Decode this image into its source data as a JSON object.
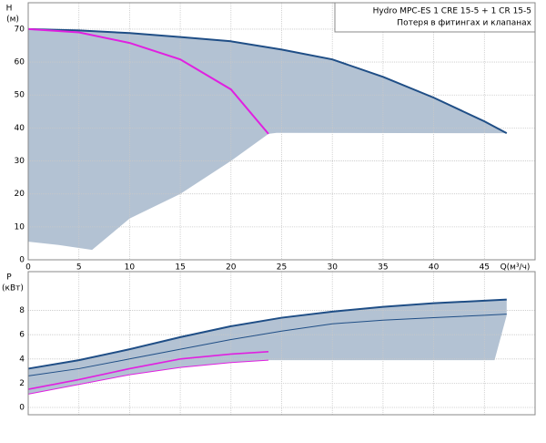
{
  "chart_data": [
    {
      "type": "line",
      "y_label": "H",
      "y_unit": "(м)",
      "x_label": "Q(м³/ч)",
      "xlim": [
        0,
        50
      ],
      "xticks": [
        0,
        5,
        10,
        15,
        20,
        25,
        30,
        35,
        40,
        45
      ],
      "xtick_labels": true,
      "ylim": [
        0,
        78
      ],
      "yticks": [
        0,
        10,
        20,
        30,
        40,
        50,
        60,
        70
      ],
      "grid": true,
      "legend": [
        "Hydro MPC-ES 1 CRE 15-5  +  1 CR 15-5",
        "Потеря в фитингах и клапанах"
      ],
      "region": {
        "color": "#b3c2d3",
        "x": [
          0,
          5,
          10,
          15,
          20,
          25,
          30,
          35,
          40,
          45,
          47.2,
          24.5,
          23.7,
          20,
          15,
          10,
          6.3,
          3,
          0
        ],
        "values": [
          70,
          69.6,
          68.8,
          67.6,
          66.3,
          63.8,
          60.8,
          55.5,
          49.2,
          42,
          38.4,
          38.5,
          38.2,
          30,
          20,
          12.5,
          3,
          4.5,
          5.5
        ]
      },
      "series": [
        {
          "color": "#1f4e86",
          "width": 2,
          "x": [
            0,
            5,
            10,
            15,
            20,
            25,
            30,
            35,
            40,
            45,
            47.2
          ],
          "values": [
            70,
            69.6,
            68.8,
            67.6,
            66.3,
            63.8,
            60.8,
            55.5,
            49.2,
            42,
            38.4
          ]
        },
        {
          "color": "#e020e0",
          "width": 2,
          "x": [
            0,
            5,
            10,
            15,
            20,
            23.7
          ],
          "values": [
            70,
            69,
            65.8,
            60.8,
            51.7,
            38.2
          ]
        }
      ]
    },
    {
      "type": "line",
      "y_label": "P",
      "y_unit": "(кВт)",
      "xlim": [
        0,
        50
      ],
      "xticks": [
        0,
        5,
        10,
        15,
        20,
        25,
        30,
        35,
        40,
        45
      ],
      "xtick_labels": false,
      "ylim": [
        -0.6,
        11.2
      ],
      "yticks": [
        0,
        2,
        4,
        6,
        8
      ],
      "grid": true,
      "region": {
        "color": "#b3c2d3",
        "x": [
          0,
          5,
          10,
          15,
          20,
          25,
          30,
          35,
          40,
          45,
          47.2,
          47.2,
          46,
          23.7,
          20,
          15,
          10,
          5,
          0
        ],
        "values": [
          3.2,
          3.9,
          4.8,
          5.8,
          6.7,
          7.4,
          7.9,
          8.3,
          8.6,
          8.8,
          8.9,
          7.6,
          3.9,
          3.9,
          3.7,
          3.3,
          2.7,
          1.9,
          1.1
        ]
      },
      "series": [
        {
          "color": "#1f4e86",
          "width": 2,
          "x": [
            0,
            5,
            10,
            15,
            20,
            25,
            30,
            35,
            40,
            45,
            47.2
          ],
          "values": [
            3.2,
            3.9,
            4.8,
            5.8,
            6.7,
            7.4,
            7.9,
            8.3,
            8.6,
            8.8,
            8.9
          ]
        },
        {
          "color": "#1f4e86",
          "width": 1,
          "x": [
            0,
            5,
            10,
            15,
            20,
            25,
            30,
            35,
            40,
            45,
            47.2
          ],
          "values": [
            2.6,
            3.2,
            4.0,
            4.8,
            5.6,
            6.3,
            6.9,
            7.2,
            7.4,
            7.6,
            7.7
          ]
        },
        {
          "color": "#e020e0",
          "width": 1.6,
          "x": [
            0,
            5,
            10,
            15,
            20,
            23.7
          ],
          "values": [
            1.5,
            2.3,
            3.2,
            4.0,
            4.4,
            4.6
          ]
        },
        {
          "color": "#e020e0",
          "width": 1,
          "x": [
            0,
            5,
            10,
            15,
            20,
            23.7
          ],
          "values": [
            1.1,
            1.9,
            2.7,
            3.3,
            3.7,
            3.9
          ]
        }
      ]
    }
  ]
}
